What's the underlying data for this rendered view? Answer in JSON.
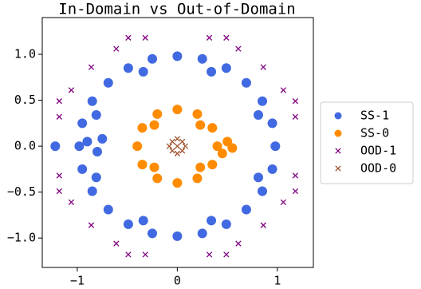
{
  "chart_data": {
    "type": "scatter",
    "title": "In-Domain vs Out-of-Domain",
    "xlim": [
      -1.35,
      1.36
    ],
    "ylim": [
      -1.32,
      1.4
    ],
    "xticks": [
      {
        "value": -1,
        "label": "−1"
      },
      0,
      1
    ],
    "yticks": [
      {
        "value": -1,
        "label": "−1.0"
      },
      {
        "value": -0.5,
        "label": "−0.5"
      },
      {
        "value": 0,
        "label": "0.0"
      },
      0.5,
      {
        "value": 1,
        "label": "1.0"
      }
    ],
    "legend": "outside-right",
    "series": [
      {
        "name": "SS-1",
        "color": "#4169e1",
        "marker": "o",
        "x": [
          0.98,
          0.95,
          0.85,
          0.69,
          0.49,
          0.25,
          0,
          -0.25,
          -0.49,
          -0.69,
          -0.85,
          -0.95,
          -0.98,
          -0.95,
          -0.85,
          -0.69,
          -0.49,
          -0.25,
          0,
          0.25,
          0.49,
          0.69,
          0.85,
          0.95,
          0.81,
          0.34,
          -0.34,
          -0.81,
          -0.81,
          -0.34,
          0.34,
          0.81,
          -0.9,
          -0.8,
          -1.22,
          -0.75
        ],
        "y": [
          0,
          0.25,
          0.49,
          0.69,
          0.85,
          0.95,
          0.98,
          0.95,
          0.85,
          0.69,
          0.49,
          0.25,
          0,
          -0.25,
          -0.49,
          -0.69,
          -0.85,
          -0.95,
          -0.98,
          -0.95,
          -0.85,
          -0.69,
          -0.49,
          -0.25,
          0.34,
          0.81,
          0.81,
          0.34,
          -0.34,
          -0.81,
          -0.81,
          -0.34,
          0.05,
          -0.06,
          0,
          0.08
        ]
      },
      {
        "name": "SS-0",
        "color": "#ff8c00",
        "marker": "o",
        "x": [
          0.4,
          0.35,
          0.2,
          0,
          -0.2,
          -0.35,
          -0.4,
          -0.35,
          -0.2,
          0,
          0.2,
          0.35,
          0.23,
          -0.23,
          -0.23,
          0.23,
          0.5,
          0.45,
          0.55
        ],
        "y": [
          0,
          0.2,
          0.35,
          0.4,
          0.35,
          0.2,
          0,
          -0.2,
          -0.35,
          -0.4,
          -0.35,
          -0.2,
          0.23,
          0.23,
          -0.23,
          -0.23,
          0.05,
          -0.08,
          -0.02
        ]
      },
      {
        "name": "OOD-1",
        "color": "#800080",
        "marker": "x",
        "x": [
          1.18,
          1.06,
          0.86,
          0.61,
          0.32,
          -1.18,
          -1.06,
          -0.86,
          -0.61,
          -0.32,
          -1.18,
          -1.06,
          -0.86,
          -0.61,
          -0.32,
          1.18,
          1.06,
          0.86,
          0.61,
          0.32,
          1.18,
          0.49,
          -1.18,
          -0.49,
          -1.18,
          -0.49,
          1.18,
          0.49
        ],
        "y": [
          0.32,
          0.61,
          0.86,
          1.06,
          1.18,
          0.32,
          0.61,
          0.86,
          1.06,
          1.18,
          -0.32,
          -0.61,
          -0.86,
          -1.06,
          -1.18,
          -0.32,
          -0.61,
          -0.86,
          -1.06,
          -1.18,
          0.49,
          1.18,
          0.49,
          1.18,
          -0.49,
          -1.18,
          -0.49,
          -1.18
        ]
      },
      {
        "name": "OOD-0",
        "color": "#a0522d",
        "marker": "x",
        "x": [
          0.08,
          0,
          -0.08,
          0,
          0.05,
          -0.05,
          -0.05,
          0.05,
          0
        ],
        "y": [
          0,
          0.08,
          0,
          -0.08,
          0.05,
          0.05,
          -0.05,
          -0.05,
          0
        ]
      }
    ]
  }
}
